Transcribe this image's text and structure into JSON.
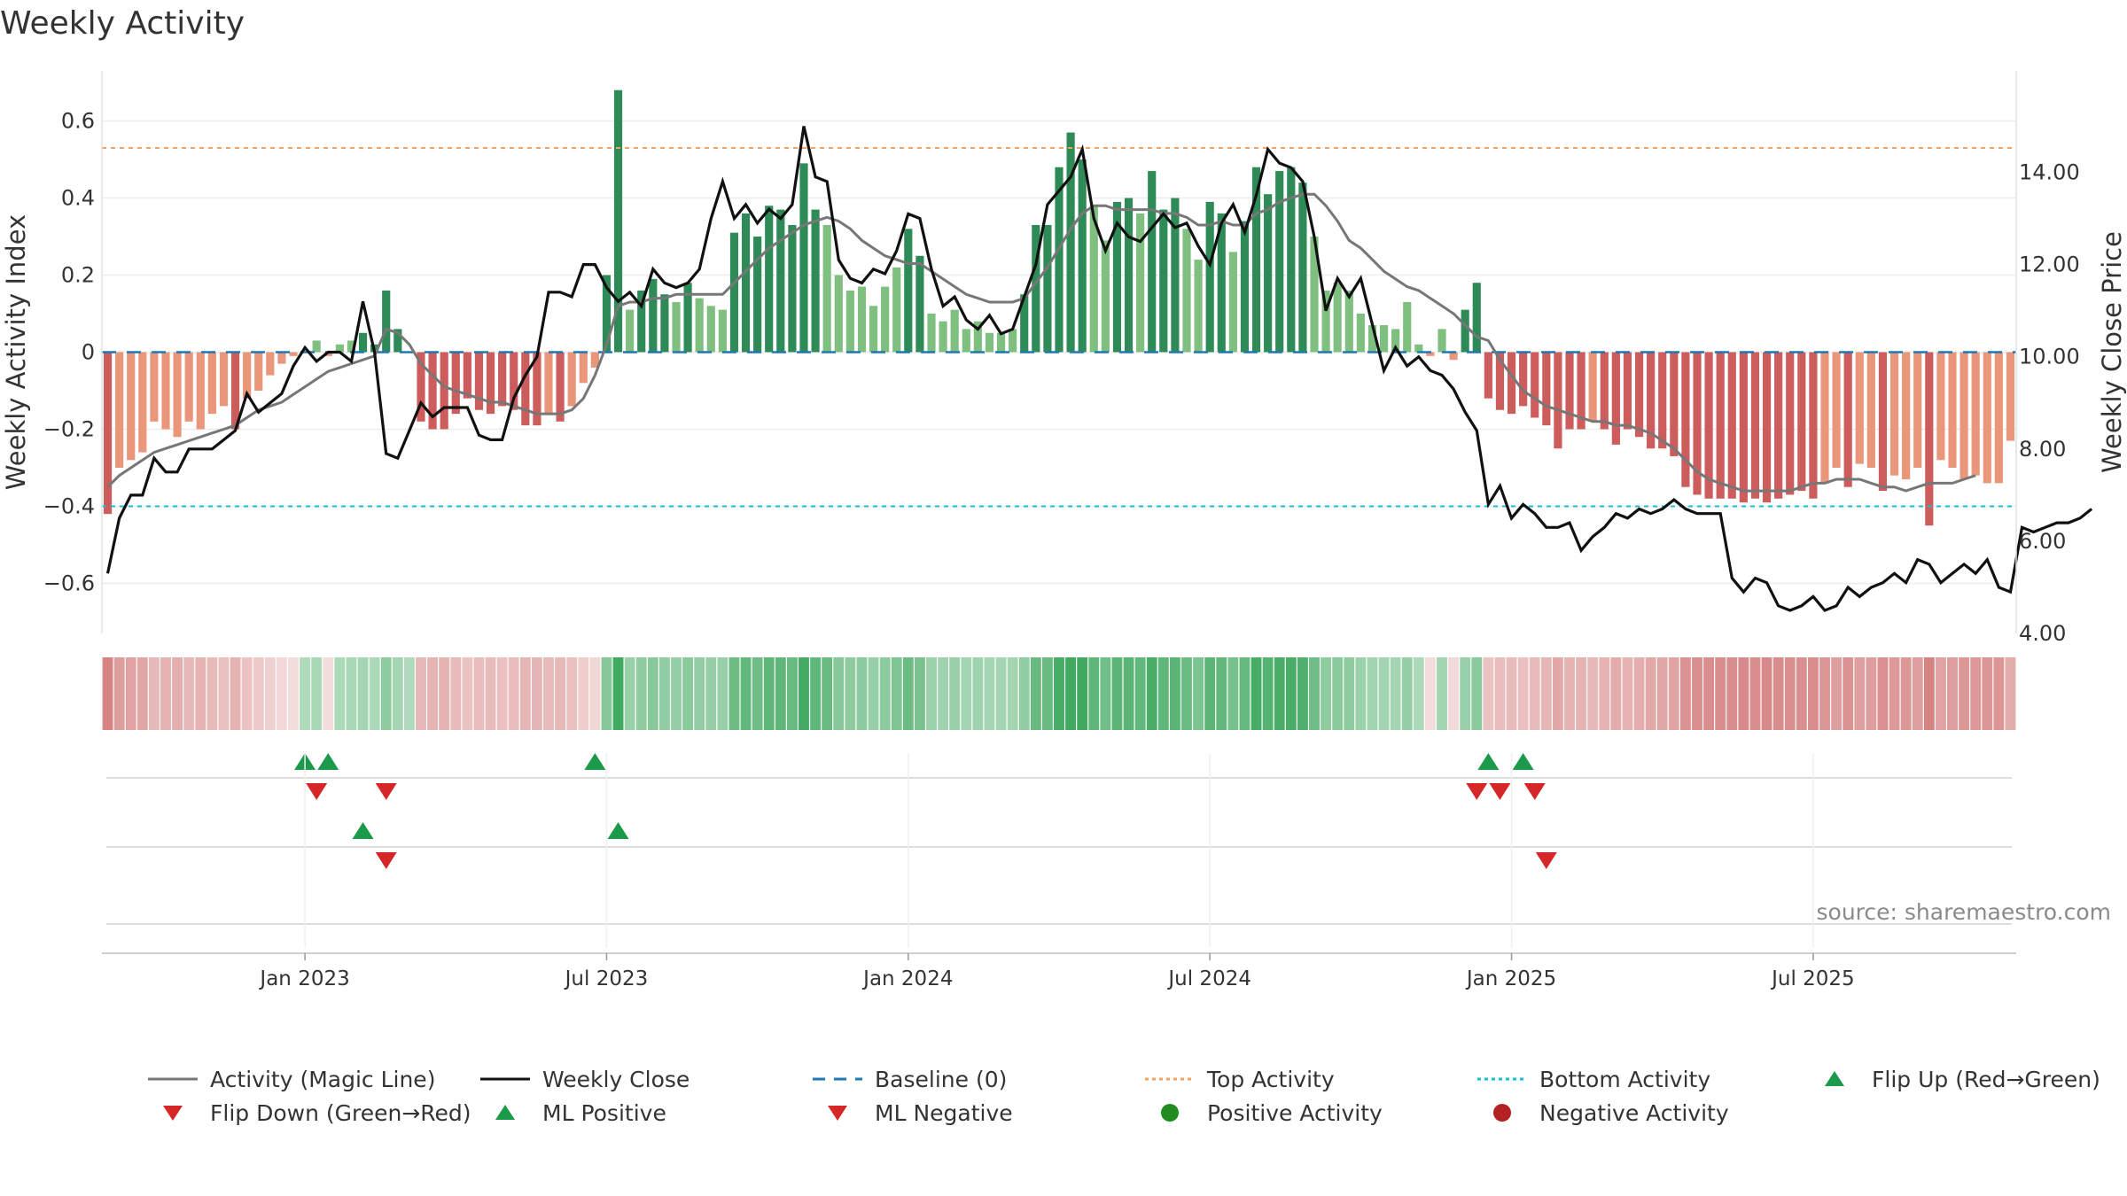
{
  "title": "Weekly Activity",
  "source": "source: sharemaestro.com",
  "colors": {
    "pos_dark": "#2e8b57",
    "pos_light": "#7fbf7f",
    "neg_dark": "#cd5c5c",
    "neg_light": "#e9967a",
    "magic": "#777777",
    "close": "#111111",
    "baseline": "#1f77b4",
    "top": "#f4a460",
    "bottom": "#17becf",
    "up": "#1a9a4a",
    "down": "#d62728",
    "pos_dot": "#228b22",
    "neg_dot": "#b22222"
  },
  "chart_data": {
    "type": "bar+line",
    "title": "Weekly Activity",
    "ylabel_left": "Weekly Activity Index",
    "ylabel_right": "Weekly Close Price",
    "ylim_left": [
      -0.73,
      0.73
    ],
    "ylim_right": [
      4.0,
      16.2
    ],
    "yticks_left": [
      {
        "v": 0.6,
        "label": "0.6"
      },
      {
        "v": 0.4,
        "label": "0.4"
      },
      {
        "v": 0.2,
        "label": "0.2"
      },
      {
        "v": 0,
        "label": "0"
      },
      {
        "v": -0.2,
        "label": "−0.2"
      },
      {
        "v": -0.4,
        "label": "−0.4"
      },
      {
        "v": -0.6,
        "label": "−0.6"
      }
    ],
    "yticks_right": [
      {
        "v": 14,
        "label": "14.00"
      },
      {
        "v": 12,
        "label": "12.00"
      },
      {
        "v": 10,
        "label": "10.00"
      },
      {
        "v": 8,
        "label": "8.00"
      },
      {
        "v": 6,
        "label": "6.00"
      },
      {
        "v": 4,
        "label": "4.00"
      }
    ],
    "x_ticks": [
      {
        "week": 17,
        "label": "Jan 2023"
      },
      {
        "week": 43,
        "label": "Jul 2023"
      },
      {
        "week": 69,
        "label": "Jan 2024"
      },
      {
        "week": 95,
        "label": "Jul 2024"
      },
      {
        "week": 121,
        "label": "Jan 2025"
      },
      {
        "week": 147,
        "label": "Jul 2025"
      }
    ],
    "top_activity": 0.53,
    "bottom_activity": -0.4,
    "baseline": 0,
    "activity": [
      -0.42,
      -0.3,
      -0.28,
      -0.26,
      -0.18,
      -0.2,
      -0.22,
      -0.18,
      -0.2,
      -0.16,
      -0.14,
      -0.2,
      -0.12,
      -0.1,
      -0.06,
      -0.03,
      -0.01,
      0.0,
      0.03,
      -0.01,
      0.02,
      0.03,
      0.05,
      0.02,
      0.16,
      0.06,
      0.0,
      -0.18,
      -0.2,
      -0.2,
      -0.16,
      -0.12,
      -0.15,
      -0.16,
      -0.14,
      -0.15,
      -0.19,
      -0.19,
      -0.16,
      -0.18,
      -0.14,
      -0.08,
      -0.04,
      0.2,
      0.68,
      0.11,
      0.16,
      0.19,
      0.15,
      0.13,
      0.18,
      0.14,
      0.12,
      0.11,
      0.31,
      0.36,
      0.3,
      0.38,
      0.37,
      0.33,
      0.49,
      0.37,
      0.33,
      0.2,
      0.16,
      0.17,
      0.12,
      0.17,
      0.22,
      0.32,
      0.25,
      0.1,
      0.08,
      0.11,
      0.06,
      0.08,
      0.05,
      0.05,
      0.06,
      0.15,
      0.33,
      0.33,
      0.48,
      0.57,
      0.5,
      0.38,
      0.29,
      0.39,
      0.4,
      0.36,
      0.47,
      0.37,
      0.4,
      0.32,
      0.24,
      0.39,
      0.36,
      0.26,
      0.34,
      0.48,
      0.41,
      0.47,
      0.48,
      0.44,
      0.3,
      0.16,
      0.18,
      0.16,
      0.1,
      0.07,
      0.07,
      0.06,
      0.13,
      0.02,
      -0.01,
      0.06,
      -0.02,
      0.11,
      0.18,
      -0.12,
      -0.15,
      -0.16,
      -0.14,
      -0.17,
      -0.19,
      -0.25,
      -0.2,
      -0.2,
      -0.18,
      -0.2,
      -0.24,
      -0.2,
      -0.22,
      -0.25,
      -0.25,
      -0.27,
      -0.35,
      -0.37,
      -0.38,
      -0.38,
      -0.38,
      -0.39,
      -0.38,
      -0.39,
      -0.38,
      -0.37,
      -0.36,
      -0.38,
      -0.34,
      -0.3,
      -0.35,
      -0.29,
      -0.3,
      -0.36,
      -0.32,
      -0.33,
      -0.3,
      -0.45,
      -0.28,
      -0.3,
      -0.33,
      -0.32,
      -0.34,
      -0.34,
      -0.23
    ],
    "magic_line": [
      -0.35,
      -0.32,
      -0.3,
      -0.28,
      -0.26,
      -0.25,
      -0.24,
      -0.23,
      -0.22,
      -0.21,
      -0.2,
      -0.19,
      -0.17,
      -0.15,
      -0.14,
      -0.13,
      -0.11,
      -0.09,
      -0.07,
      -0.05,
      -0.04,
      -0.03,
      -0.02,
      -0.01,
      0.06,
      0.05,
      0.02,
      -0.03,
      -0.06,
      -0.09,
      -0.1,
      -0.11,
      -0.12,
      -0.13,
      -0.13,
      -0.14,
      -0.15,
      -0.16,
      -0.16,
      -0.16,
      -0.15,
      -0.12,
      -0.06,
      0.02,
      0.12,
      0.13,
      0.13,
      0.14,
      0.14,
      0.15,
      0.15,
      0.15,
      0.15,
      0.15,
      0.18,
      0.21,
      0.24,
      0.27,
      0.29,
      0.31,
      0.33,
      0.34,
      0.35,
      0.34,
      0.32,
      0.29,
      0.27,
      0.25,
      0.24,
      0.23,
      0.23,
      0.21,
      0.19,
      0.17,
      0.15,
      0.14,
      0.13,
      0.13,
      0.13,
      0.14,
      0.18,
      0.22,
      0.27,
      0.32,
      0.36,
      0.38,
      0.38,
      0.37,
      0.37,
      0.37,
      0.37,
      0.36,
      0.36,
      0.35,
      0.33,
      0.33,
      0.34,
      0.33,
      0.33,
      0.36,
      0.37,
      0.39,
      0.4,
      0.41,
      0.41,
      0.38,
      0.34,
      0.29,
      0.27,
      0.24,
      0.21,
      0.19,
      0.17,
      0.16,
      0.14,
      0.12,
      0.1,
      0.07,
      0.04,
      0.03,
      -0.02,
      -0.06,
      -0.1,
      -0.12,
      -0.14,
      -0.15,
      -0.16,
      -0.17,
      -0.18,
      -0.18,
      -0.19,
      -0.19,
      -0.2,
      -0.21,
      -0.23,
      -0.25,
      -0.28,
      -0.31,
      -0.33,
      -0.34,
      -0.35,
      -0.36,
      -0.36,
      -0.36,
      -0.36,
      -0.36,
      -0.35,
      -0.34,
      -0.34,
      -0.33,
      -0.33,
      -0.33,
      -0.34,
      -0.35,
      -0.35,
      -0.36,
      -0.35,
      -0.34,
      -0.34,
      -0.34,
      -0.33,
      -0.32
    ],
    "weekly_close": [
      5.3,
      6.5,
      7.0,
      7.0,
      7.8,
      7.5,
      7.5,
      8.0,
      8.0,
      8.0,
      8.2,
      8.4,
      9.2,
      8.8,
      9.0,
      9.2,
      9.8,
      10.2,
      9.9,
      10.1,
      10.1,
      9.9,
      11.2,
      10.1,
      7.9,
      7.8,
      8.4,
      9.0,
      8.7,
      8.9,
      8.9,
      8.9,
      8.3,
      8.2,
      8.2,
      9.1,
      9.6,
      10.0,
      11.4,
      11.4,
      11.3,
      12.0,
      12.0,
      11.5,
      11.2,
      11.4,
      11.1,
      11.9,
      11.6,
      11.5,
      11.6,
      11.9,
      13.0,
      13.8,
      13.0,
      13.3,
      12.9,
      13.2,
      13.0,
      13.3,
      15.0,
      13.9,
      13.8,
      12.1,
      11.7,
      11.6,
      11.9,
      11.8,
      12.3,
      13.1,
      13.0,
      11.9,
      11.1,
      11.3,
      10.8,
      10.6,
      10.9,
      10.5,
      10.6,
      11.3,
      12.0,
      13.3,
      13.6,
      13.9,
      14.5,
      13.0,
      12.3,
      12.9,
      12.6,
      12.5,
      12.8,
      13.1,
      12.8,
      12.9,
      12.4,
      12.0,
      12.9,
      13.3,
      12.7,
      13.5,
      14.5,
      14.2,
      14.1,
      13.8,
      12.6,
      11.0,
      11.7,
      11.3,
      11.7,
      10.7,
      9.7,
      10.2,
      9.8,
      10.0,
      9.7,
      9.6,
      9.3,
      8.8,
      8.4,
      6.8,
      7.2,
      6.5,
      6.8,
      6.6,
      6.3,
      6.3,
      6.4,
      5.8,
      6.1,
      6.3,
      6.6,
      6.5,
      6.7,
      6.6,
      6.7,
      6.9,
      6.7,
      6.6,
      6.6,
      6.6,
      5.2,
      4.9,
      5.2,
      5.1,
      4.6,
      4.5,
      4.6,
      4.8,
      4.5,
      4.6,
      5.0,
      4.8,
      5.0,
      5.1,
      5.3,
      5.1,
      5.6,
      5.5,
      5.1,
      5.3,
      5.5,
      5.3,
      5.6,
      5.0,
      4.9,
      6.3,
      6.2,
      6.3,
      6.4,
      6.4,
      6.5,
      6.7
    ],
    "activity_markers": {
      "flip_up": [
        17,
        19,
        42,
        119,
        122
      ],
      "flip_down": [
        18,
        24,
        118,
        120,
        123
      ]
    },
    "ml_markers": {
      "ml_positive": [
        22,
        44
      ],
      "ml_negative": [
        24,
        124
      ]
    },
    "legend": [
      {
        "key": "magic",
        "label": "Activity (Magic Line)"
      },
      {
        "key": "close",
        "label": "Weekly Close"
      },
      {
        "key": "baseline",
        "label": "Baseline (0)"
      },
      {
        "key": "top",
        "label": "Top Activity"
      },
      {
        "key": "bottom",
        "label": "Bottom Activity"
      },
      {
        "key": "flip_up",
        "label": "Flip Up (Red→Green)"
      },
      {
        "key": "flip_down",
        "label": "Flip Down (Green→Red)"
      },
      {
        "key": "ml_pos",
        "label": "ML Positive"
      },
      {
        "key": "ml_neg",
        "label": "ML Negative"
      },
      {
        "key": "pos_act",
        "label": "Positive Activity"
      },
      {
        "key": "neg_act",
        "label": "Negative Activity"
      }
    ]
  }
}
